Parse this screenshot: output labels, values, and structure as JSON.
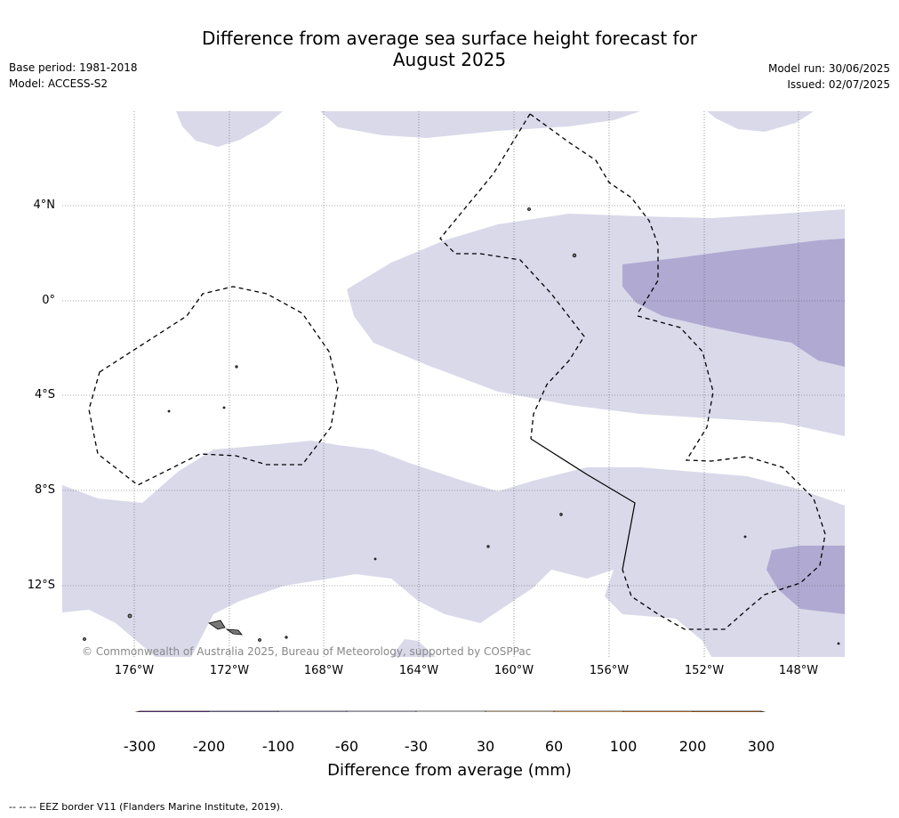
{
  "header": {
    "title_line1": "Difference from average sea surface height forecast for",
    "title_line2": "August 2025",
    "base_period": "Base period: 1981-2018",
    "model": "Model: ACCESS-S2",
    "model_run": "Model run: 30/06/2025",
    "issued": "Issued: 02/07/2025"
  },
  "map": {
    "lat_labels": [
      "4°N",
      "0°",
      "4°S",
      "8°S",
      "12°S"
    ],
    "lon_labels": [
      "176°W",
      "172°W",
      "168°W",
      "164°W",
      "160°W",
      "156°W",
      "152°W",
      "148°W"
    ],
    "copyright": "© Commonwealth of Australia 2025, Bureau of Meteorology, supported by COSPPac",
    "colors": {
      "light_purple": "#d9d9ea",
      "medium_purple": "#b0a9d1",
      "eez_border": "#000000"
    }
  },
  "colorbar": {
    "title": "Difference from average (mm)",
    "labels": [
      "-300",
      "-200",
      "-100",
      "-60",
      "-30",
      "30",
      "60",
      "100",
      "200",
      "300"
    ],
    "colors": [
      "#2d0a4e",
      "#57208a",
      "#7e70ac",
      "#b0a9d1",
      "#d9d9ea",
      "#ffffff",
      "#fddfb6",
      "#f9b45e",
      "#e0801b",
      "#b05507",
      "#7f3b08"
    ]
  },
  "footnote": "--  --  -- EEZ border V11 (Flanders Marine Institute, 2019)."
}
